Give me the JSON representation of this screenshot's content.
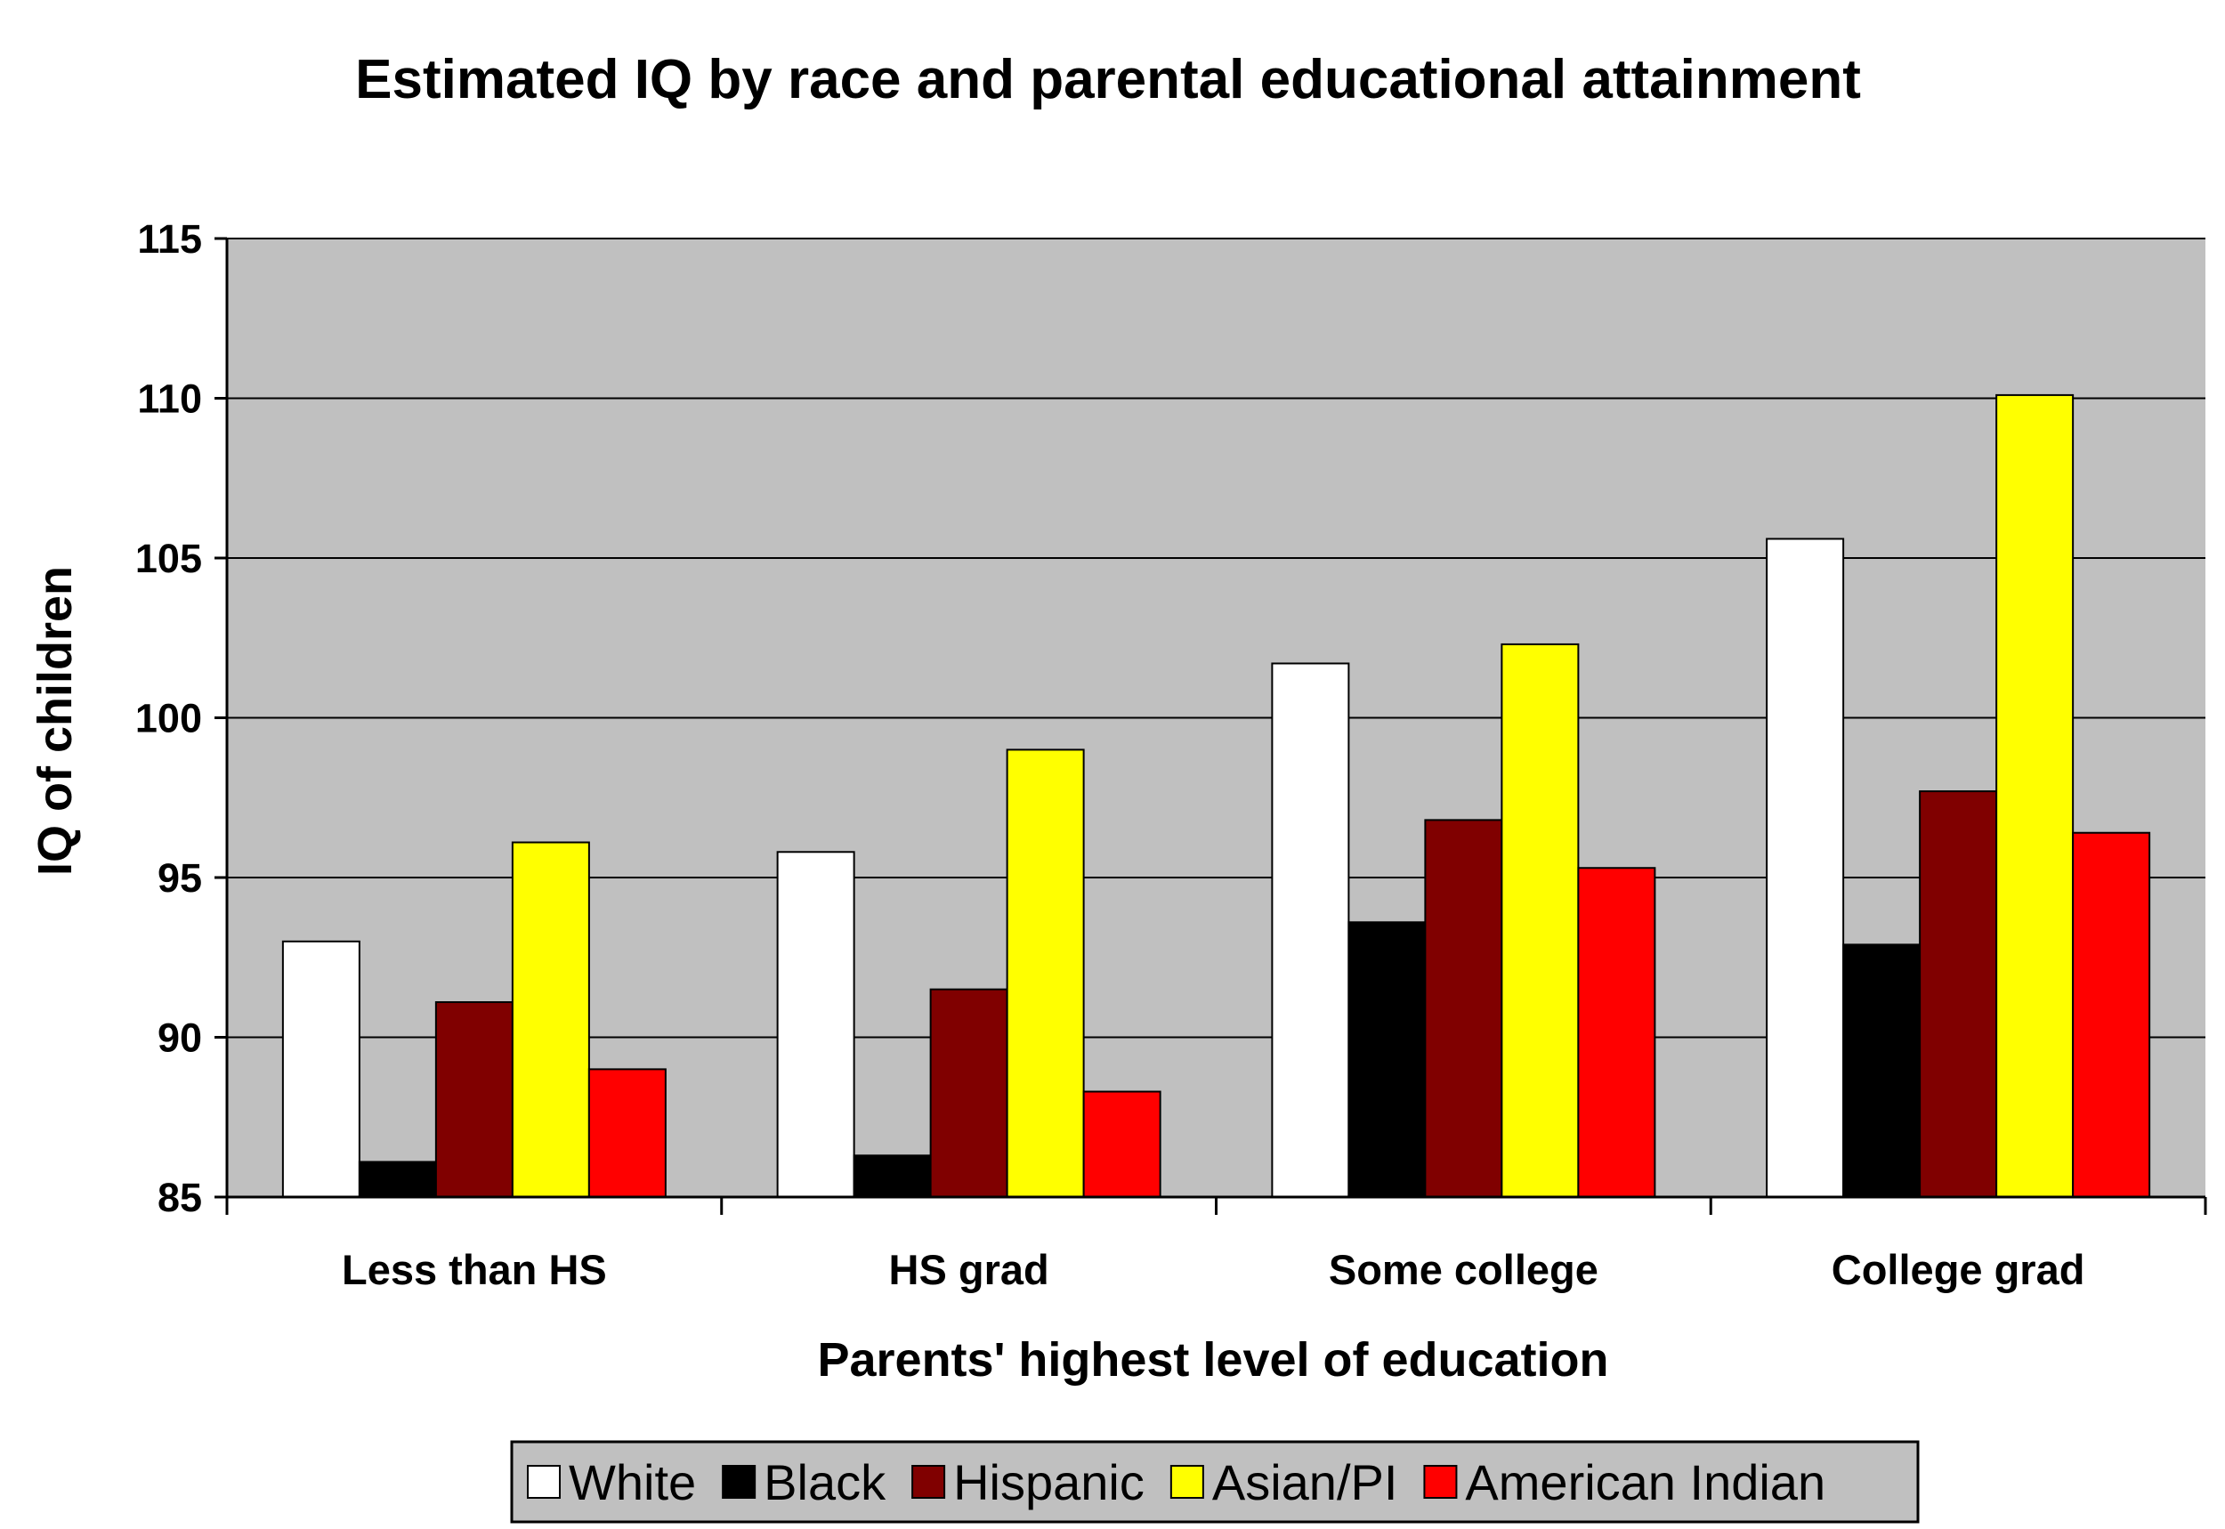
{
  "chart_data": {
    "type": "bar",
    "title": "Estimated IQ by race and parental educational attainment",
    "xlabel": "Parents' highest level of education",
    "ylabel": "IQ of children",
    "categories": [
      "Less than HS",
      "HS grad",
      "Some college",
      "College grad"
    ],
    "series": [
      {
        "name": "White",
        "color": "#ffffff",
        "values": [
          93.0,
          95.8,
          101.7,
          105.6
        ]
      },
      {
        "name": "Black",
        "color": "#000000",
        "values": [
          86.1,
          86.3,
          93.6,
          92.9
        ]
      },
      {
        "name": "Hispanic",
        "color": "#800000",
        "values": [
          91.1,
          91.5,
          96.8,
          97.7
        ]
      },
      {
        "name": "Asian/PI",
        "color": "#ffff00",
        "values": [
          96.1,
          99.0,
          102.3,
          110.1
        ]
      },
      {
        "name": "American Indian",
        "color": "#ff0000",
        "values": [
          89.0,
          88.3,
          95.3,
          96.4
        ]
      }
    ],
    "ylim": [
      85,
      115
    ],
    "yticks": [
      85,
      90,
      95,
      100,
      105,
      110,
      115
    ],
    "grid": true,
    "plot_background": "#c0c0c0",
    "legend_position": "bottom"
  }
}
